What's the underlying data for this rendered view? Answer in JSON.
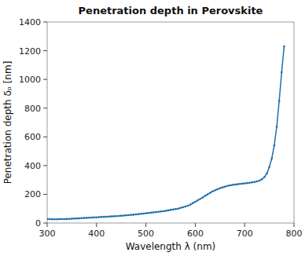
{
  "chart_data": {
    "type": "line",
    "title": "Penetration depth in Perovskite",
    "xlabel": "Wavelength λ (nm)",
    "ylabel": "Penetration depth δₚ [nm]",
    "color": "#1f6fab",
    "marker": "point",
    "xlim": [
      300,
      800
    ],
    "ylim": [
      0,
      1400
    ],
    "xticks": [
      300,
      400,
      500,
      600,
      700,
      800
    ],
    "yticks": [
      0,
      200,
      400,
      600,
      800,
      1000,
      1200,
      1400
    ],
    "x": [
      300,
      305,
      310,
      315,
      320,
      325,
      330,
      335,
      340,
      345,
      350,
      355,
      360,
      365,
      370,
      375,
      380,
      385,
      390,
      395,
      400,
      405,
      410,
      415,
      420,
      425,
      430,
      435,
      440,
      445,
      450,
      455,
      460,
      465,
      470,
      475,
      480,
      485,
      490,
      495,
      500,
      505,
      510,
      515,
      520,
      525,
      530,
      535,
      540,
      545,
      550,
      555,
      560,
      565,
      570,
      575,
      580,
      585,
      590,
      595,
      600,
      605,
      610,
      615,
      620,
      625,
      630,
      635,
      640,
      645,
      650,
      655,
      660,
      665,
      670,
      675,
      680,
      685,
      690,
      695,
      700,
      705,
      710,
      715,
      720,
      725,
      730,
      735,
      740,
      745,
      750,
      755,
      760,
      765,
      770,
      775,
      780
    ],
    "values": [
      28,
      27,
      26,
      26,
      26,
      27,
      27,
      27,
      28,
      29,
      30,
      31,
      32,
      33,
      34,
      35,
      36,
      37,
      38,
      39,
      40,
      41,
      42,
      43,
      44,
      45,
      46,
      47,
      48,
      49,
      51,
      52,
      54,
      55,
      57,
      58,
      60,
      62,
      64,
      66,
      68,
      70,
      72,
      74,
      76,
      78,
      80,
      82,
      85,
      88,
      91,
      94,
      97,
      100,
      105,
      110,
      115,
      120,
      128,
      138,
      148,
      158,
      168,
      178,
      190,
      200,
      210,
      220,
      228,
      235,
      242,
      248,
      253,
      258,
      262,
      265,
      268,
      270,
      272,
      274,
      276,
      278,
      280,
      283,
      286,
      290,
      295,
      305,
      320,
      345,
      390,
      450,
      540,
      670,
      850,
      1050,
      1230
    ]
  }
}
